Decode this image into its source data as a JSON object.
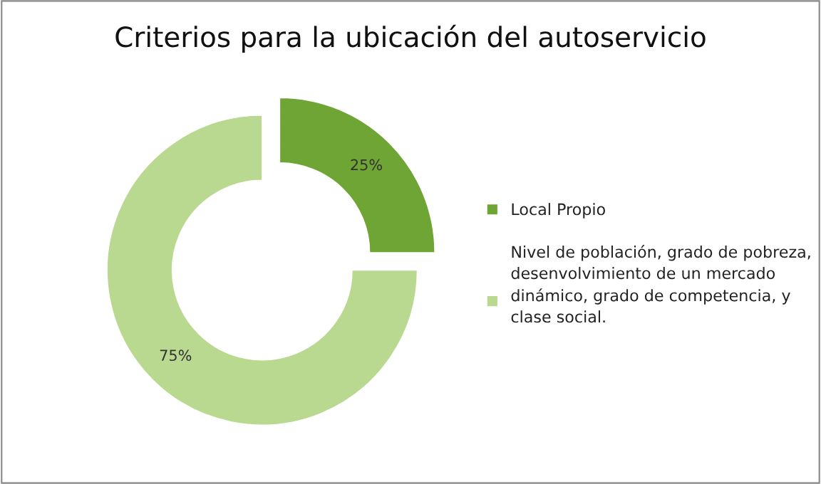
{
  "chart_data": {
    "type": "donut",
    "title": "Criterios para la ubicación del autoservicio",
    "categories": [
      "Local Propio",
      "Nivel de población, grado de pobreza, desenvolvimiento de un mercado dinámico, grado de competencia, y clase social."
    ],
    "values": [
      25,
      75
    ],
    "colors": [
      "#6fa534",
      "#b9d990"
    ],
    "value_labels": [
      "25%",
      "75%"
    ],
    "legend": "right"
  }
}
